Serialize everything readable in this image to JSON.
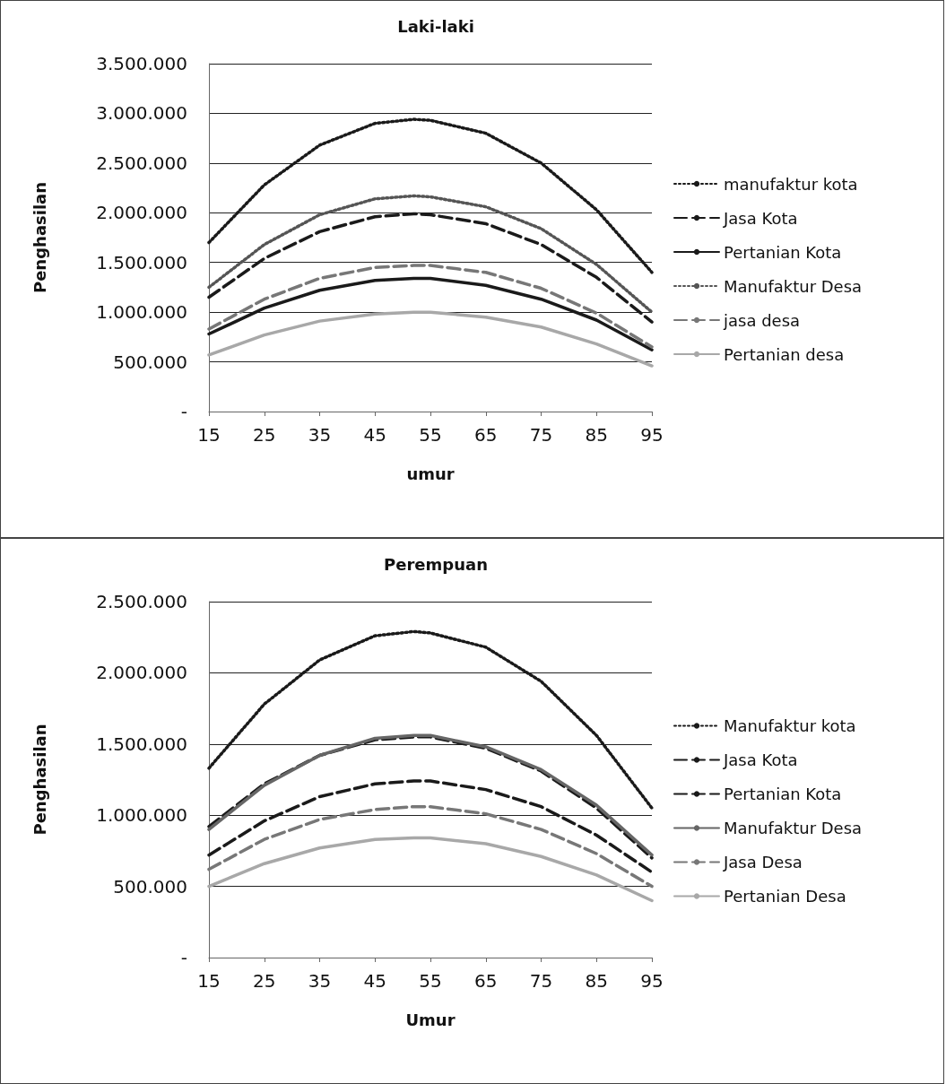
{
  "chart_data": [
    {
      "type": "line",
      "title": "Laki-laki",
      "xlabel": "umur",
      "ylabel": "Penghasilan",
      "x": [
        15,
        25,
        35,
        45,
        52,
        55,
        65,
        75,
        85,
        95
      ],
      "xlim": [
        15,
        95
      ],
      "xticks": [
        15,
        25,
        35,
        45,
        55,
        65,
        75,
        85,
        95
      ],
      "ylim": [
        0,
        3500000
      ],
      "yticks": [
        {
          "value": 0,
          "label": "-"
        },
        {
          "value": 500000,
          "label": "500.000"
        },
        {
          "value": 1000000,
          "label": "1.000.000"
        },
        {
          "value": 1500000,
          "label": "1.500.000"
        },
        {
          "value": 2000000,
          "label": "2.000.000"
        },
        {
          "value": 2500000,
          "label": "2.500.000"
        },
        {
          "value": 3000000,
          "label": "3.000.000"
        },
        {
          "value": 3500000,
          "label": "3.500.000"
        }
      ],
      "grid": "y",
      "legend": "right",
      "marker": "none",
      "series": [
        {
          "name": "manufaktur kota",
          "color": "#1a1a1a",
          "line_style": "dotted",
          "values": [
            1700000,
            2280000,
            2680000,
            2900000,
            2940000,
            2930000,
            2800000,
            2500000,
            2030000,
            1400000
          ]
        },
        {
          "name": "Jasa Kota",
          "color": "#1a1a1a",
          "line_style": "dashed",
          "values": [
            1150000,
            1540000,
            1810000,
            1960000,
            1990000,
            1980000,
            1890000,
            1680000,
            1350000,
            900000
          ]
        },
        {
          "name": "Pertanian Kota",
          "color": "#1a1a1a",
          "line_style": "solid",
          "values": [
            780000,
            1040000,
            1220000,
            1320000,
            1340000,
            1340000,
            1270000,
            1130000,
            920000,
            620000
          ]
        },
        {
          "name": "Manufaktur Desa",
          "color": "#555555",
          "line_style": "dotted",
          "values": [
            1250000,
            1680000,
            1980000,
            2140000,
            2170000,
            2160000,
            2060000,
            1840000,
            1480000,
            1000000
          ]
        },
        {
          "name": "jasa desa",
          "color": "#777777",
          "line_style": "dashed",
          "values": [
            830000,
            1130000,
            1340000,
            1450000,
            1470000,
            1470000,
            1400000,
            1240000,
            990000,
            650000
          ]
        },
        {
          "name": "Pertanian desa",
          "color": "#a8a8a8",
          "line_style": "solid",
          "values": [
            570000,
            770000,
            910000,
            980000,
            1000000,
            1000000,
            950000,
            850000,
            680000,
            460000
          ]
        }
      ]
    },
    {
      "type": "line",
      "title": "Perempuan",
      "xlabel": "Umur",
      "ylabel": "Penghasilan",
      "x": [
        15,
        25,
        35,
        45,
        52,
        55,
        65,
        75,
        85,
        95
      ],
      "xlim": [
        15,
        95
      ],
      "xticks": [
        15,
        25,
        35,
        45,
        55,
        65,
        75,
        85,
        95
      ],
      "ylim": [
        0,
        2500000
      ],
      "yticks": [
        {
          "value": 0,
          "label": "-"
        },
        {
          "value": 500000,
          "label": "500.000"
        },
        {
          "value": 1000000,
          "label": "1.000.000"
        },
        {
          "value": 1500000,
          "label": "1.500.000"
        },
        {
          "value": 2000000,
          "label": "2.000.000"
        },
        {
          "value": 2500000,
          "label": "2.500.000"
        }
      ],
      "grid": "y",
      "legend": "right",
      "marker": "none",
      "series": [
        {
          "name": "Manufaktur kota",
          "color": "#1a1a1a",
          "line_style": "dotted",
          "values": [
            1330000,
            1780000,
            2090000,
            2260000,
            2290000,
            2280000,
            2180000,
            1940000,
            1560000,
            1050000
          ]
        },
        {
          "name": "Jasa Kota",
          "color": "#1a1a1a",
          "line_style": "dashed",
          "values": [
            920000,
            1220000,
            1420000,
            1530000,
            1550000,
            1550000,
            1470000,
            1310000,
            1050000,
            700000
          ]
        },
        {
          "name": "Pertanian Kota",
          "color": "#1a1a1a",
          "line_style": "dashed",
          "values": [
            720000,
            960000,
            1130000,
            1220000,
            1240000,
            1240000,
            1180000,
            1060000,
            860000,
            600000
          ]
        },
        {
          "name": "Manufaktur Desa",
          "color": "#666666",
          "line_style": "solid",
          "values": [
            900000,
            1210000,
            1420000,
            1540000,
            1560000,
            1560000,
            1480000,
            1320000,
            1070000,
            720000
          ]
        },
        {
          "name": "Jasa Desa",
          "color": "#777777",
          "line_style": "dashed",
          "values": [
            620000,
            830000,
            970000,
            1040000,
            1060000,
            1060000,
            1010000,
            900000,
            730000,
            500000
          ]
        },
        {
          "name": "Pertanian Desa",
          "color": "#a8a8a8",
          "line_style": "solid",
          "values": [
            500000,
            660000,
            770000,
            830000,
            840000,
            840000,
            800000,
            710000,
            580000,
            400000
          ]
        }
      ]
    }
  ]
}
